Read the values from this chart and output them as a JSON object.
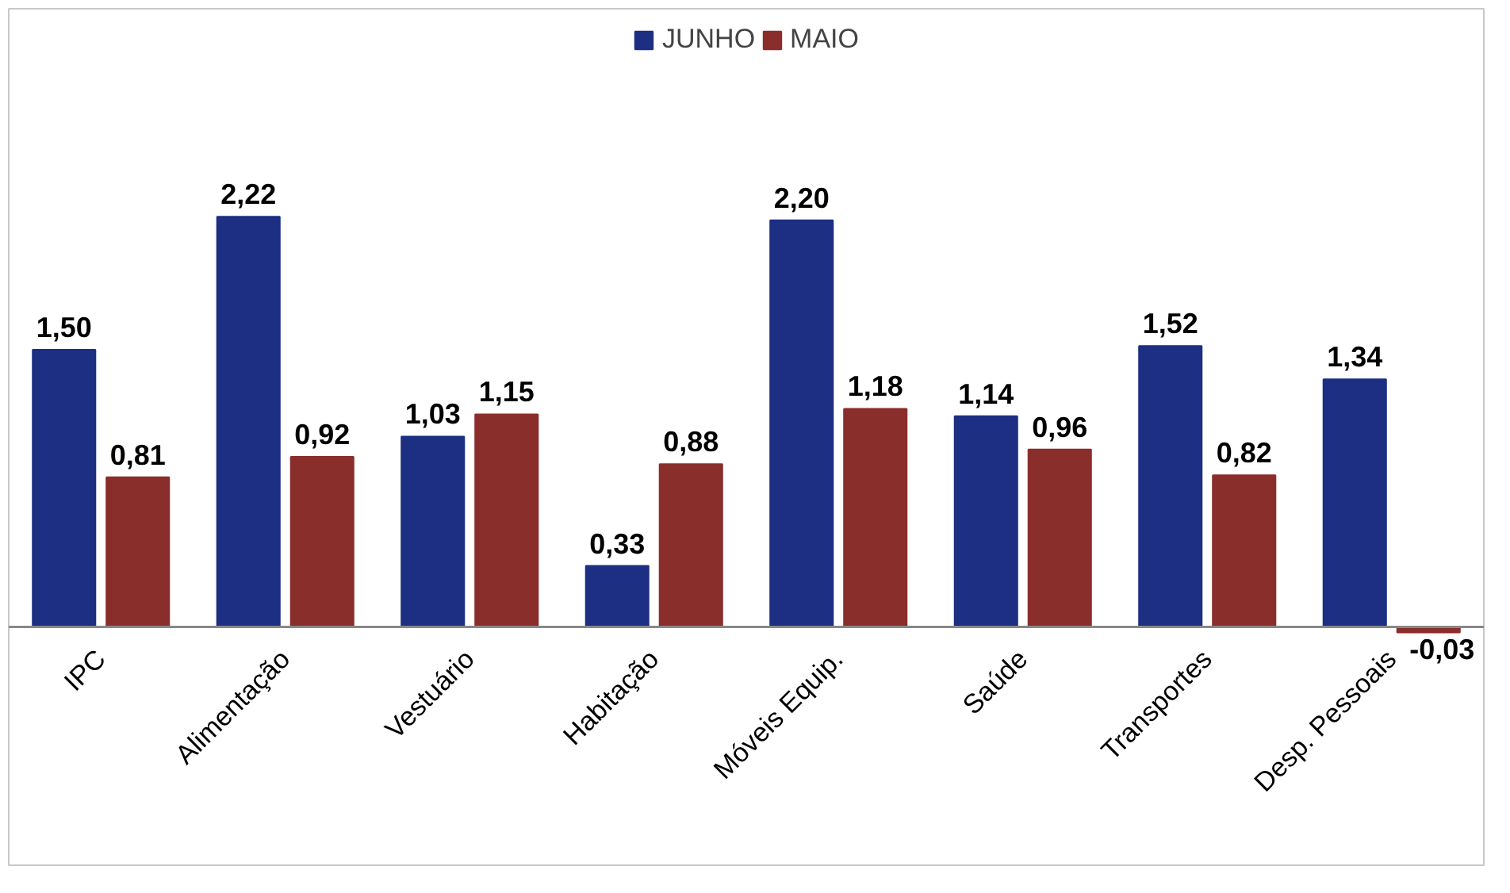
{
  "chart_data": {
    "type": "bar",
    "categories": [
      "IPC",
      "Alimentação",
      "Vestuário",
      "Habitação",
      "Móveis Equip.",
      "Saúde",
      "Transportes",
      "Desp. Pessoais"
    ],
    "series": [
      {
        "name": "JUNHO",
        "color": "#1c2f82",
        "values": [
          1.5,
          2.22,
          1.03,
          0.33,
          2.2,
          1.14,
          1.52,
          1.34
        ],
        "value_labels": [
          "1,50",
          "2,22",
          "1,03",
          "0,33",
          "2,20",
          "1,14",
          "1,52",
          "1,34"
        ]
      },
      {
        "name": "MAIO",
        "color": "#8a2e2b",
        "values": [
          0.81,
          0.92,
          1.15,
          0.88,
          1.18,
          0.96,
          0.82,
          -0.03
        ],
        "value_labels": [
          "0,81",
          "0,92",
          "1,15",
          "0,88",
          "1,18",
          "0,96",
          "0,82",
          "-0,03"
        ]
      }
    ],
    "legend": "top"
  }
}
